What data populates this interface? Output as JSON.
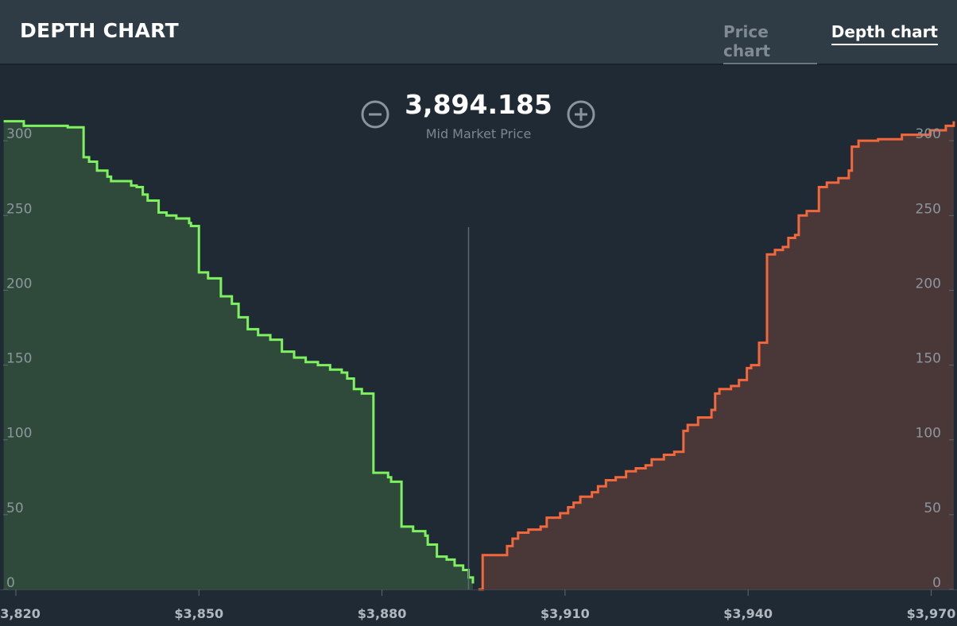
{
  "header": {
    "title": "DEPTH CHART",
    "tabs": [
      "Price chart",
      "Depth chart"
    ]
  },
  "chart_data": {
    "type": "depth",
    "mid_market": {
      "value": 3894.185,
      "label": "3,894.185",
      "caption": "Mid Market Price"
    },
    "xlim": [
      3818,
      3974
    ],
    "xticks": [
      {
        "value": 3820,
        "label": "$3,820"
      },
      {
        "value": 3850,
        "label": "$3,850"
      },
      {
        "value": 3880,
        "label": "$3,880"
      },
      {
        "value": 3910,
        "label": "$3,910"
      },
      {
        "value": 3940,
        "label": "$3,940"
      },
      {
        "value": 3970,
        "label": "$3,970"
      }
    ],
    "ylim": [
      0,
      350
    ],
    "yticks": [
      0,
      50,
      100,
      150,
      200,
      250,
      300
    ],
    "series": [
      {
        "color": "#7ef25e",
        "fill": "#2f4a3b",
        "x": [
          3818,
          3821.3,
          3828.5,
          3831.1,
          3832.0,
          3833.3,
          3835.0,
          3835.6,
          3838.9,
          3839.8,
          3840.8,
          3841.6,
          3843.4,
          3844.7,
          3846.3,
          3848.4,
          3848.7,
          3850.0,
          3851.5,
          3853.6,
          3855.4,
          3856.5,
          3858.0,
          3859.7,
          3861.7,
          3863.6,
          3865.6,
          3867.5,
          3869.5,
          3871.5,
          3873.4,
          3874.3,
          3875.4,
          3876.7,
          3878.6,
          3881.0,
          3881.5,
          3883.2,
          3885.1,
          3887.1,
          3887.5,
          3889.0,
          3890.6,
          3891.9,
          3893.3,
          3894.2,
          3894.9
        ],
        "values": [
          313,
          310,
          309,
          289,
          286,
          280,
          276,
          273,
          270,
          269,
          264,
          260,
          252,
          250,
          248,
          245,
          243,
          212,
          208,
          196,
          191,
          182,
          174,
          170,
          167,
          159,
          155,
          152,
          150,
          147,
          145,
          141,
          134,
          131,
          78,
          75,
          72,
          42,
          39,
          36,
          30,
          22,
          20,
          16,
          13,
          8,
          4
        ]
      },
      {
        "color": "#f2673b",
        "fill": "#4a3738",
        "x": [
          3895.8,
          3896.5,
          3900.5,
          3901.4,
          3902.3,
          3904.0,
          3906.0,
          3907.0,
          3909.2,
          3910.5,
          3911.4,
          3912.5,
          3914.4,
          3915.4,
          3916.7,
          3918.3,
          3920.0,
          3921.6,
          3923.2,
          3924.2,
          3926.2,
          3927.9,
          3929.4,
          3930.1,
          3931.8,
          3934.0,
          3934.6,
          3935.3,
          3937.2,
          3938.5,
          3939.8,
          3940.5,
          3941.8,
          3943.1,
          3944.4,
          3945.7,
          3946.6,
          3947.7,
          3948.3,
          3949.6,
          3951.6,
          3952.9,
          3954.8,
          3956.5,
          3957.0,
          3958.1,
          3961.3,
          3965.2,
          3969.8,
          3972.4,
          3973.7
        ],
        "values": [
          0,
          23,
          29,
          34,
          38,
          40,
          42,
          48,
          51,
          55,
          58,
          62,
          65,
          69,
          73,
          75,
          79,
          81,
          83,
          87,
          90,
          92,
          106,
          110,
          115,
          120,
          131,
          134,
          136,
          140,
          148,
          150,
          165,
          224,
          227,
          229,
          235,
          237,
          250,
          253,
          269,
          272,
          275,
          280,
          296,
          300,
          301,
          304,
          307,
          310,
          313
        ]
      }
    ]
  }
}
